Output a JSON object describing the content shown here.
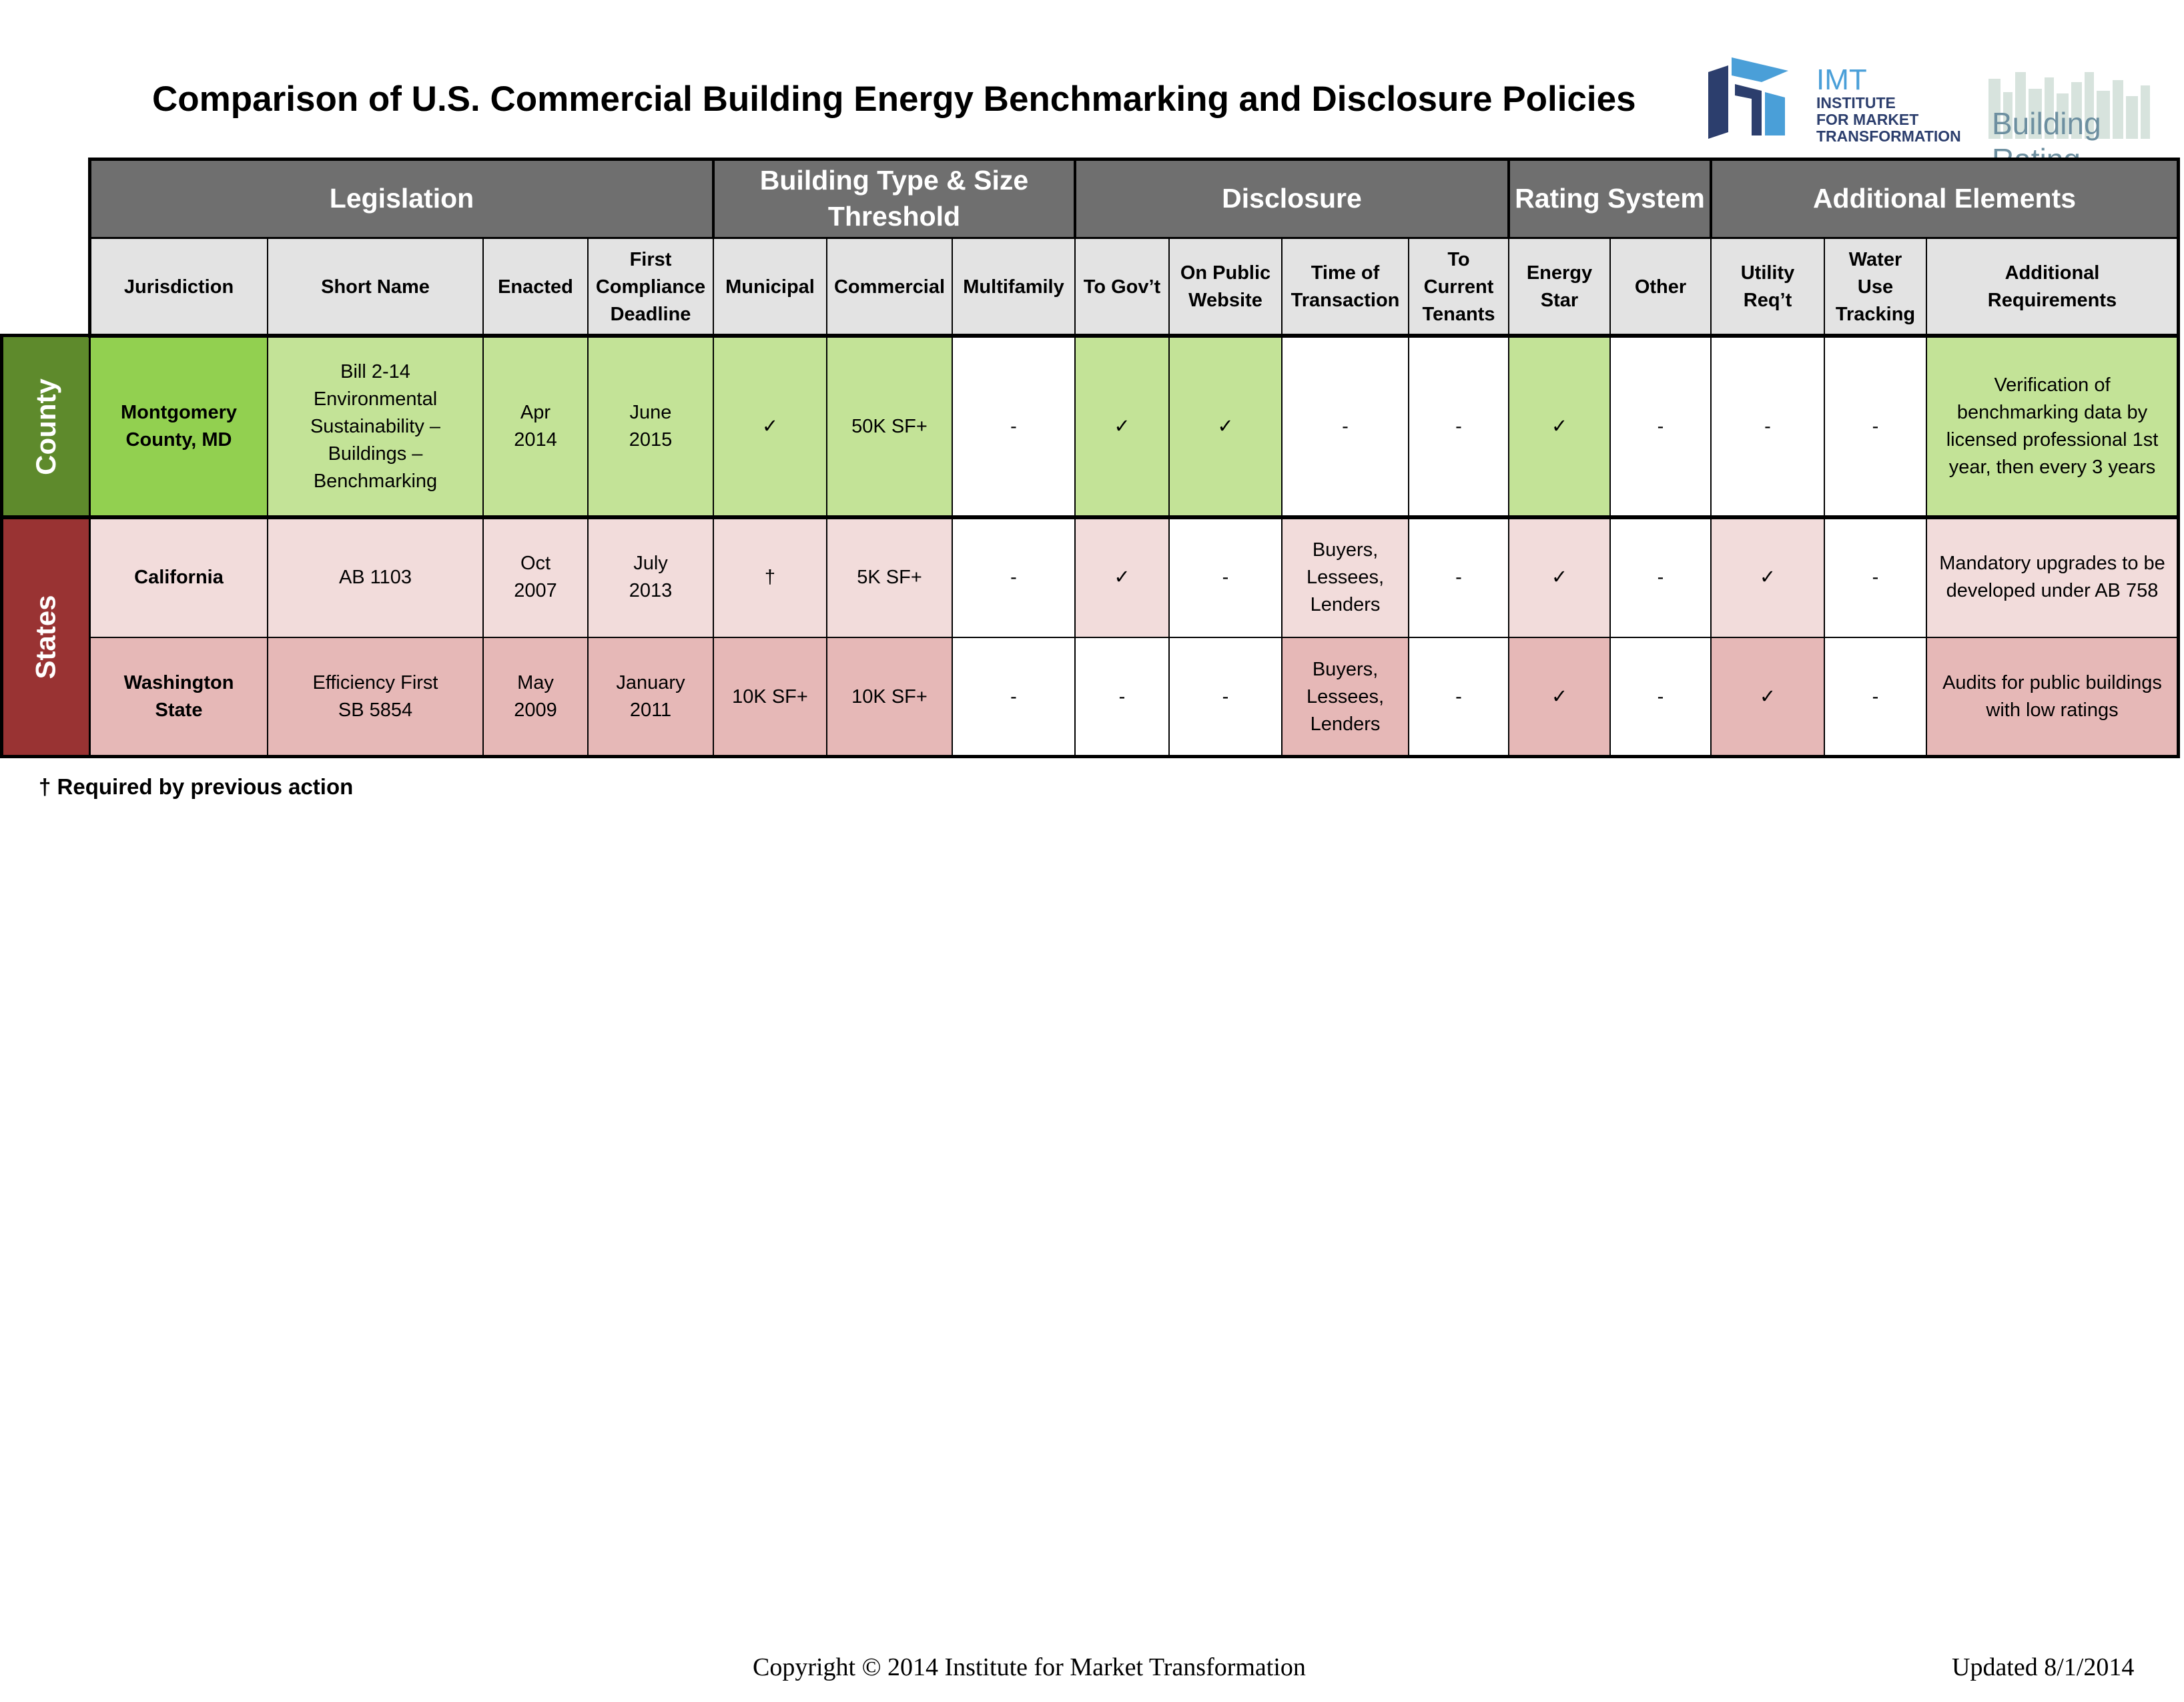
{
  "title": "Comparison of U.S. Commercial Building Energy Benchmarking and Disclosure Policies",
  "logo": {
    "imt": "IMT",
    "line1": "INSTITUTE",
    "line2": "FOR MARKET",
    "line3": "TRANSFORMATION",
    "building_rating": "Building Rating"
  },
  "groups": {
    "legislation": "Legislation",
    "building_type": "Building Type & Size Threshold",
    "disclosure": "Disclosure",
    "rating_system": "Rating System",
    "additional_elements": "Additional Elements"
  },
  "columns": {
    "jurisdiction": "Jurisdiction",
    "short_name": "Short Name",
    "enacted": "Enacted",
    "first_deadline": "First Compliance Deadline",
    "municipal": "Municipal",
    "commercial": "Commercial",
    "multifamily": "Multifamily",
    "to_gov": "To Gov’t",
    "public_website": "On Public Website",
    "time_of_transaction": "Time of Transaction",
    "current_tenants": "To Current Tenants",
    "energy_star": "Energy Star",
    "other": "Other",
    "utility_req": "Utility Req’t",
    "water_use": "Water Use Tracking",
    "additional_req": "Additional Requirements"
  },
  "sections": {
    "county": "County",
    "states": "States"
  },
  "rows": {
    "montgomery": {
      "jurisdiction": "Montgomery County, MD",
      "short_name": "Bill 2-14 Environmental Sustainability – Buildings – Benchmarking",
      "enacted": "Apr 2014",
      "deadline": "June 2015",
      "municipal": "✓",
      "commercial": "50K SF+",
      "multifamily": "-",
      "to_gov": "✓",
      "public_website": "✓",
      "transaction": "-",
      "tenants": "-",
      "energy_star": "✓",
      "other": "-",
      "utility": "-",
      "water": "-",
      "additional": "Verification of benchmarking data by licensed professional 1st year, then every 3 years"
    },
    "california": {
      "jurisdiction": "California",
      "short_name": "AB 1103",
      "enacted": "Oct 2007",
      "deadline": "July 2013",
      "municipal": "†",
      "commercial": "5K SF+",
      "multifamily": "-",
      "to_gov": "✓",
      "public_website": "-",
      "transaction": "Buyers, Lessees, Lenders",
      "tenants": "-",
      "energy_star": "✓",
      "other": "-",
      "utility": "✓",
      "water": "-",
      "additional": "Mandatory upgrades to be developed under AB 758"
    },
    "washington": {
      "jurisdiction": "Washington State",
      "short_name": "Efficiency First SB 5854",
      "enacted": "May 2009",
      "deadline": "January 2011",
      "municipal": "10K SF+",
      "commercial": "10K SF+",
      "multifamily": "-",
      "to_gov": "-",
      "public_website": "-",
      "transaction": "Buyers, Lessees, Lenders",
      "tenants": "-",
      "energy_star": "✓",
      "other": "-",
      "utility": "✓",
      "water": "-",
      "additional": "Audits for public buildings with low ratings"
    }
  },
  "footnote": "† Required by previous action",
  "copyright": "Copyright © 2014 Institute for Market Transformation",
  "updated": "Updated 8/1/2014",
  "colors": {
    "header_dark": "#6f6f6f",
    "header_light": "#e3e3e3",
    "county_side": "#5e8a2c",
    "states_side": "#993333",
    "green_strong": "#92d050",
    "green_light": "#c3e397",
    "pink_light": "#f2dcdb",
    "pink_mid": "#e6b8b7"
  }
}
